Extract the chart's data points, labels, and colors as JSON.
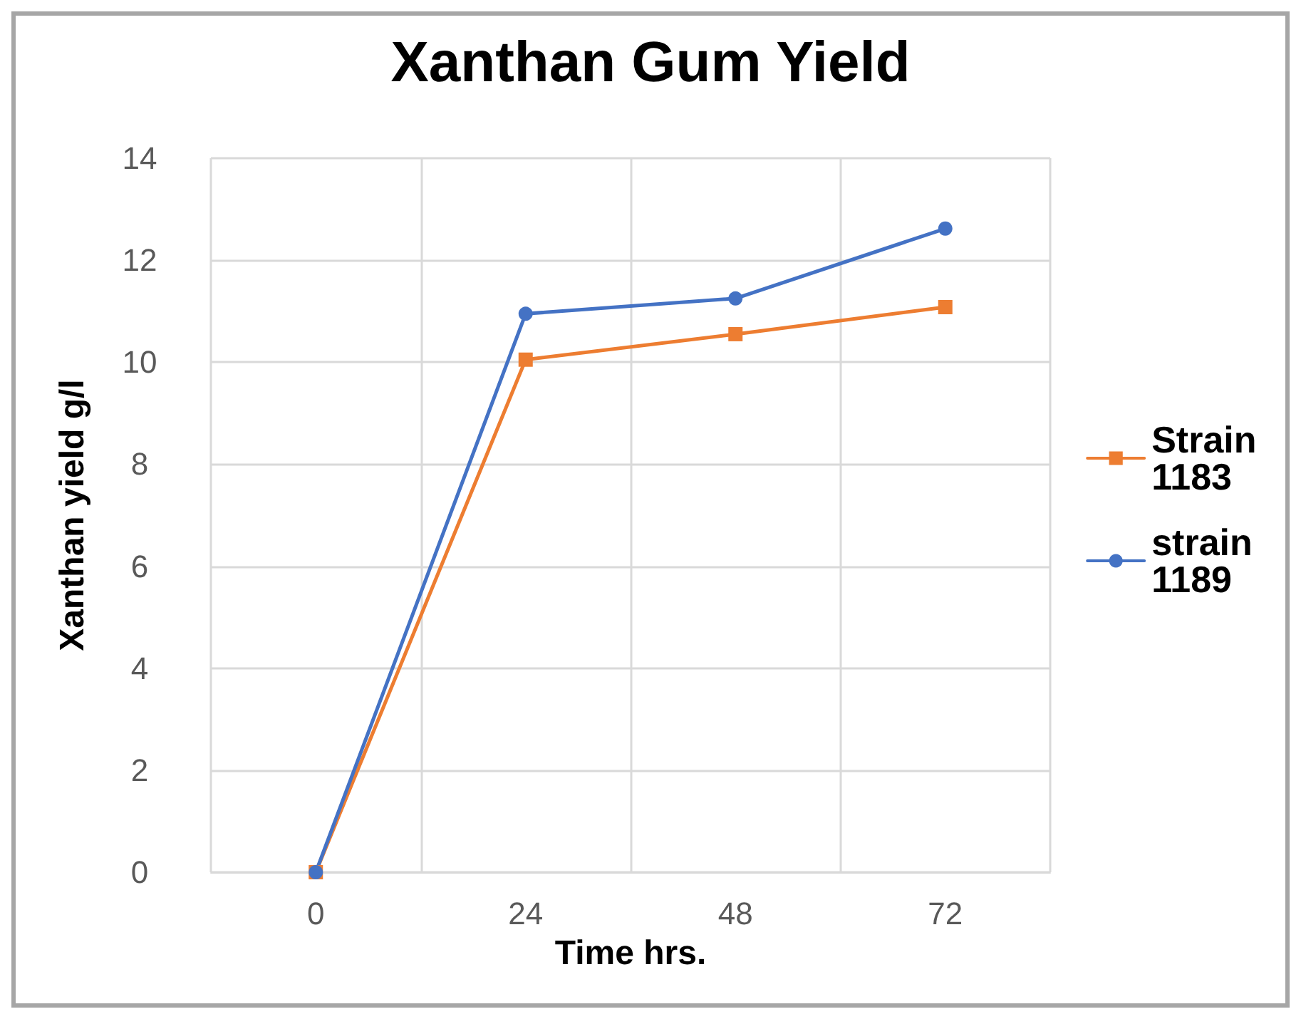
{
  "chart_data": {
    "type": "line",
    "title": "Xanthan Gum Yield",
    "xlabel": "Time hrs.",
    "ylabel": "Xanthan yield g/l",
    "categories": [
      "0",
      "24",
      "48",
      "72"
    ],
    "series": [
      {
        "name": "Strain 1183",
        "color": "#ed7d31",
        "marker": "square",
        "values": [
          0,
          10.05,
          10.55,
          11.08
        ]
      },
      {
        "name": "strain 1189",
        "color": "#4472c4",
        "marker": "circle",
        "values": [
          0,
          10.95,
          11.25,
          12.62
        ]
      }
    ],
    "ylim": [
      0,
      14
    ],
    "yticks": [
      0,
      2,
      4,
      6,
      8,
      10,
      12,
      14
    ],
    "grid": true,
    "legend": "right",
    "line_style": "solid"
  }
}
